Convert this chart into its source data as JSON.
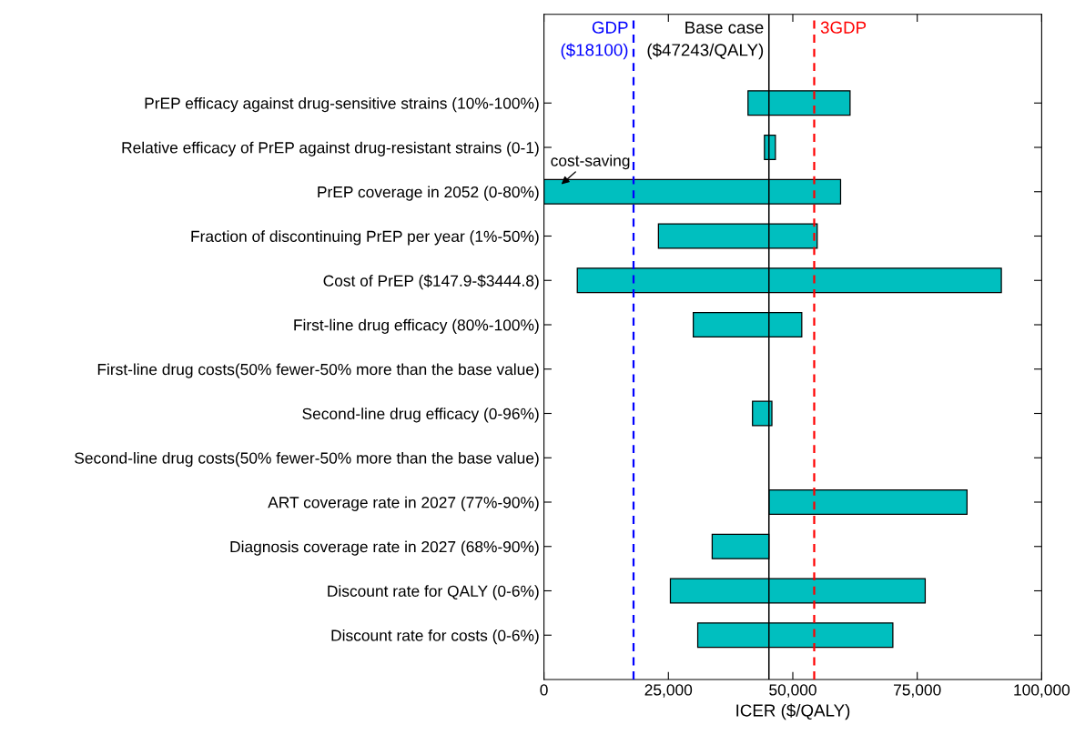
{
  "chart_data": {
    "type": "bar",
    "orientation": "horizontal",
    "xlabel": "ICER ($/QALY)",
    "categories": [
      "PrEP efficacy against drug-sensitive strains (10%-100%)",
      "Relative efficacy of PrEP against drug-resistant strains (0-1)",
      "PrEP coverage in 2052 (0-80%)",
      "Fraction of discontinuing PrEP per year (1%-50%)",
      "Cost of PrEP ($147.9-$3444.8)",
      "First-line drug efficacy (80%-100%)",
      "First-line drug costs(50% fewer-50% more than the base value)",
      "Second-line drug efficacy (0-96%)",
      "Second-line drug costs(50% fewer-50% more than the base value)",
      "ART coverage rate in 2027 (77%-90%)",
      "Diagnosis coverage rate in 2027 (68%-90%)",
      "Discount rate for QALY (0-6%)",
      "Discount rate for costs (0-6%)"
    ],
    "base": [
      41000,
      44300,
      0,
      23000,
      6700,
      30000,
      null,
      41900,
      null,
      45200,
      33800,
      25400,
      30900
    ],
    "values": [
      20500,
      2200,
      59600,
      31900,
      85200,
      21800,
      null,
      3900,
      null,
      39800,
      11400,
      51200,
      39200
    ],
    "color": "#00bfbf",
    "xlim": [
      0,
      100000
    ],
    "xticks": [
      0,
      {
        "value": 25000,
        "label": "25,000"
      },
      {
        "value": 50000,
        "label": "50,000"
      },
      {
        "value": 75000,
        "label": "75,000"
      },
      {
        "value": 100000,
        "label": "100,000"
      }
    ],
    "ref_lines": [
      {
        "axis": "x",
        "value": 18000,
        "label": "GDP\n($18100)",
        "color": "#0000ff",
        "line_style": "dashed"
      },
      {
        "axis": "x",
        "value": 45200,
        "label": "Base case\n($47243/QALY)",
        "color": "#000000",
        "line_style": "solid"
      },
      {
        "axis": "x",
        "value": 54300,
        "label": "3GDP",
        "color": "#ff0000",
        "line_style": "dashed"
      }
    ],
    "annotations": [
      "cost-saving"
    ],
    "grid": false,
    "legend": false
  }
}
